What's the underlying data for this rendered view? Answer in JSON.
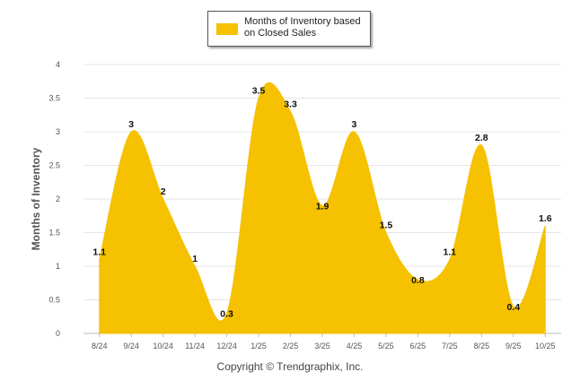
{
  "chart_data": {
    "type": "area",
    "categories": [
      "8/24",
      "9/24",
      "10/24",
      "11/24",
      "12/24",
      "1/25",
      "2/25",
      "3/25",
      "4/25",
      "5/25",
      "6/25",
      "7/25",
      "8/25",
      "9/25",
      "10/25"
    ],
    "series": [
      {
        "name": "Months of Inventory based on Closed Sales",
        "values": [
          1.1,
          3,
          2,
          1,
          0.3,
          3.5,
          3.3,
          1.9,
          3,
          1.5,
          0.8,
          1.1,
          2.8,
          0.4,
          1.6
        ],
        "data_labels": [
          "1.1",
          "3",
          "2",
          "1",
          "0.3",
          "3.5",
          "3.3",
          "1.9",
          "3",
          "1.5",
          "0.8",
          "1.1",
          "2.8",
          "0.4",
          "1.6"
        ],
        "color": "#f5c100"
      }
    ],
    "ylabel": "Months of Inventory",
    "ylim": [
      0,
      4
    ],
    "yticks": [
      "0",
      "0.5",
      "1",
      "1.5",
      "2",
      "2.5",
      "3",
      "3.5",
      "4"
    ],
    "grid": true,
    "legend_position": "top-center"
  },
  "footer": {
    "credit": "Copyright © Trendgraphix, Inc."
  }
}
